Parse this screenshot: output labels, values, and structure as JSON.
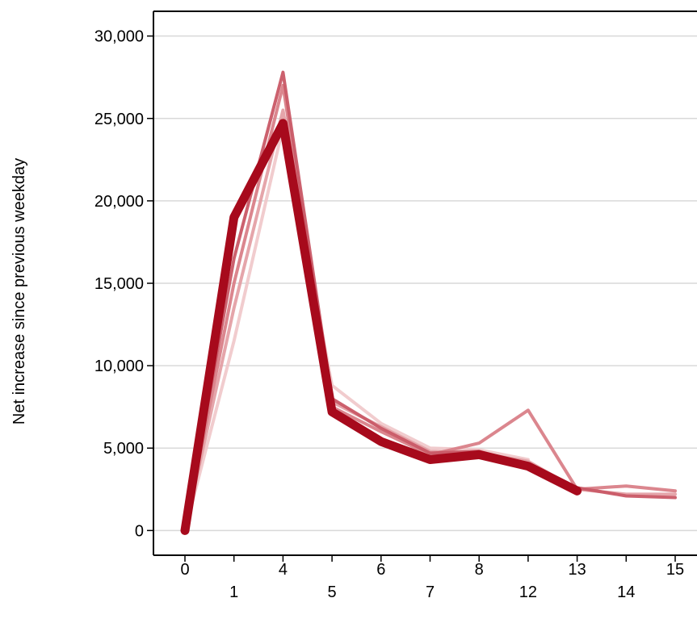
{
  "chart_data": {
    "type": "line",
    "title": "",
    "xlabel": "",
    "ylabel": "Net increase since previous weekday",
    "categories": [
      "0",
      "1",
      "4",
      "5",
      "6",
      "7",
      "8",
      "12",
      "13",
      "14",
      "15"
    ],
    "ylim": [
      -1500,
      31500
    ],
    "yticks": [
      0,
      5000,
      10000,
      15000,
      20000,
      25000,
      30000
    ],
    "ytick_labels": [
      "0",
      "5,000",
      "10,000",
      "15,000",
      "20,000",
      "25,000",
      "30,000"
    ],
    "grid": "horizontal",
    "legend": "none",
    "series": [
      {
        "color": "#f0c6c9",
        "opacity": 0.9,
        "width": 4,
        "values": [
          0,
          11500,
          24500,
          8800,
          6500,
          5000,
          4900,
          4300,
          null,
          null,
          null
        ]
      },
      {
        "color": "#e29ba1",
        "opacity": 0.9,
        "width": 4,
        "values": [
          0,
          13500,
          25500,
          7800,
          6300,
          4800,
          4700,
          4200,
          2500,
          2200,
          2200
        ]
      },
      {
        "color": "#d97f88",
        "opacity": 0.95,
        "width": 4,
        "values": [
          0,
          15000,
          27000,
          7500,
          6000,
          4600,
          5300,
          7300,
          2500,
          2700,
          2400
        ]
      },
      {
        "color": "#c95966",
        "opacity": 0.95,
        "width": 4,
        "values": [
          0,
          16500,
          27800,
          8000,
          6200,
          4700,
          4800,
          4000,
          2600,
          2100,
          2000
        ]
      },
      {
        "color": "#a70a1c",
        "opacity": 1,
        "width": 11,
        "values": [
          0,
          19000,
          24700,
          7200,
          5400,
          4300,
          4600,
          3900,
          2400,
          null,
          null
        ]
      }
    ]
  }
}
